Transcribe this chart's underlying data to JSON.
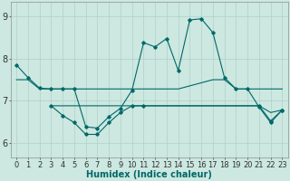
{
  "xlabel": "Humidex (Indice chaleur)",
  "xlim": [
    -0.5,
    23.5
  ],
  "ylim": [
    5.65,
    9.35
  ],
  "background_color": "#cce8e0",
  "grid_color": "#b0d0c8",
  "line_color": "#006868",
  "x_ticks": [
    0,
    1,
    2,
    3,
    4,
    5,
    6,
    7,
    8,
    9,
    10,
    11,
    12,
    13,
    14,
    15,
    16,
    17,
    18,
    19,
    20,
    21,
    22,
    23
  ],
  "y_ticks": [
    6,
    7,
    8,
    9
  ],
  "line1_x": [
    0,
    1,
    2,
    3,
    4,
    5,
    6,
    7,
    8,
    9,
    10,
    11,
    12,
    13,
    14,
    15,
    16,
    17,
    18,
    19,
    20,
    21,
    22,
    23
  ],
  "line1_y": [
    7.85,
    7.55,
    7.3,
    7.28,
    7.28,
    7.28,
    6.38,
    6.35,
    6.62,
    6.82,
    7.25,
    8.38,
    8.28,
    8.48,
    7.72,
    8.92,
    8.95,
    8.62,
    7.55,
    7.28,
    7.28,
    6.85,
    6.48,
    6.78
  ],
  "line2_x": [
    0,
    1,
    2,
    3,
    4,
    5,
    6,
    7,
    8,
    9,
    10,
    14,
    17,
    18,
    19,
    20,
    23
  ],
  "line2_y": [
    7.5,
    7.5,
    7.28,
    7.28,
    7.28,
    7.28,
    7.28,
    7.28,
    7.28,
    7.28,
    7.28,
    7.28,
    7.5,
    7.5,
    7.28,
    7.28,
    7.28
  ],
  "line3_x": [
    3,
    6,
    10,
    14,
    17,
    19,
    21,
    22,
    23
  ],
  "line3_y": [
    6.88,
    6.88,
    6.88,
    6.88,
    6.88,
    6.88,
    6.88,
    6.72,
    6.78
  ],
  "line4_x": [
    3,
    4,
    5,
    6,
    7,
    8,
    9,
    10,
    11,
    21,
    22,
    23
  ],
  "line4_y": [
    6.88,
    6.65,
    6.48,
    6.2,
    6.2,
    6.48,
    6.72,
    6.88,
    6.88,
    6.88,
    6.52,
    6.78
  ],
  "xlabel_fontsize": 7,
  "tick_fontsize": 6
}
